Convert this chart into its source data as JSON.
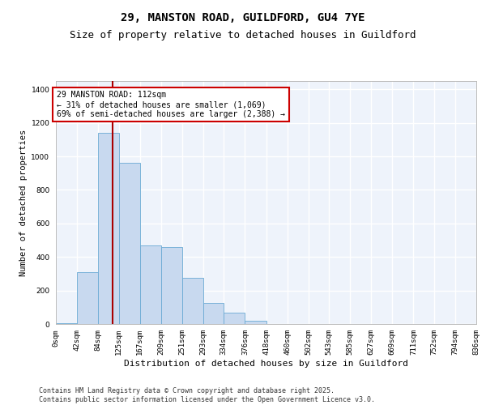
{
  "title": "29, MANSTON ROAD, GUILDFORD, GU4 7YE",
  "subtitle": "Size of property relative to detached houses in Guildford",
  "xlabel": "Distribution of detached houses by size in Guildford",
  "ylabel": "Number of detached properties",
  "bar_color": "#c8d9ef",
  "bar_edge_color": "#6aaad4",
  "background_color": "#eef3fb",
  "grid_color": "#ffffff",
  "vline_x": 112,
  "vline_color": "#aa0000",
  "annotation_text": "29 MANSTON ROAD: 112sqm\n← 31% of detached houses are smaller (1,069)\n69% of semi-detached houses are larger (2,388) →",
  "annotation_box_color": "#cc0000",
  "bin_edges": [
    0,
    42,
    84,
    125,
    167,
    209,
    251,
    293,
    334,
    376,
    418,
    460,
    502,
    543,
    585,
    627,
    669,
    711,
    752,
    794,
    836
  ],
  "bin_labels": [
    "0sqm",
    "42sqm",
    "84sqm",
    "125sqm",
    "167sqm",
    "209sqm",
    "251sqm",
    "293sqm",
    "334sqm",
    "376sqm",
    "418sqm",
    "460sqm",
    "502sqm",
    "543sqm",
    "585sqm",
    "627sqm",
    "669sqm",
    "711sqm",
    "752sqm",
    "794sqm",
    "836sqm"
  ],
  "bar_heights": [
    5,
    310,
    1140,
    960,
    470,
    460,
    275,
    125,
    70,
    20,
    0,
    0,
    0,
    0,
    0,
    0,
    0,
    0,
    0,
    0
  ],
  "ylim": [
    0,
    1450
  ],
  "yticks": [
    0,
    200,
    400,
    600,
    800,
    1000,
    1200,
    1400
  ],
  "footer_text": "Contains HM Land Registry data © Crown copyright and database right 2025.\nContains public sector information licensed under the Open Government Licence v3.0.",
  "title_fontsize": 10,
  "subtitle_fontsize": 9,
  "xlabel_fontsize": 8,
  "ylabel_fontsize": 7.5,
  "tick_fontsize": 6.5,
  "annotation_fontsize": 7,
  "footer_fontsize": 6
}
